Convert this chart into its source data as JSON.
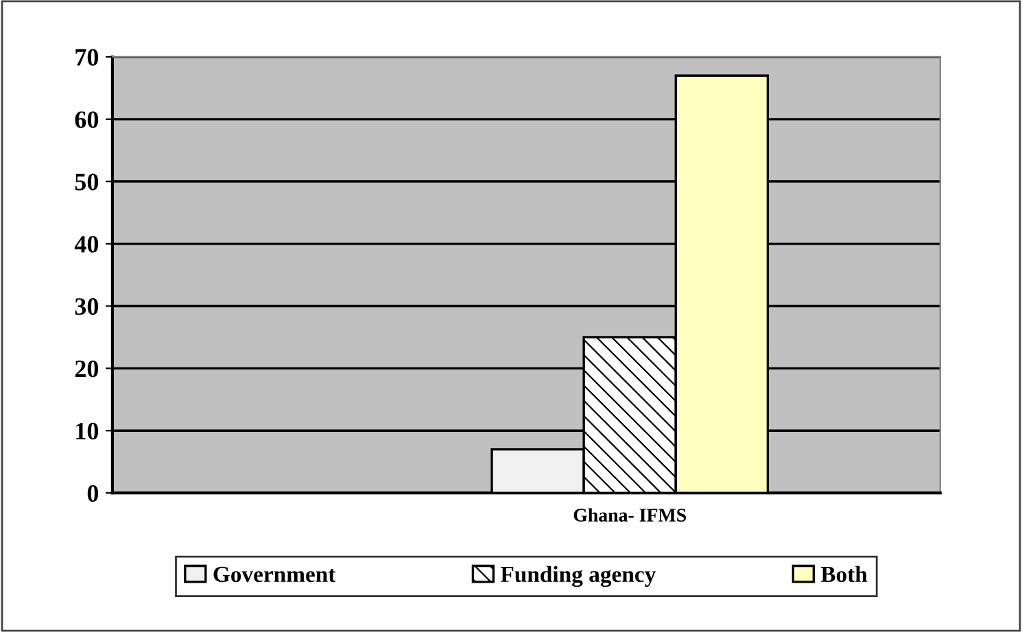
{
  "chart_data": {
    "type": "bar",
    "categories": [
      "Ghana- IFMS"
    ],
    "series": [
      {
        "name": "Government",
        "color": "#f0f0f0",
        "values": [
          7
        ]
      },
      {
        "name": "Funding agency",
        "color": "#000000",
        "values": [
          25
        ]
      },
      {
        "name": "Both",
        "color": "#ffffc0",
        "values": [
          67
        ]
      }
    ],
    "ylim": [
      0,
      70
    ],
    "yticks": [
      0,
      10,
      20,
      30,
      40,
      50,
      60,
      70
    ],
    "grid": "y",
    "legend": "bottom"
  }
}
